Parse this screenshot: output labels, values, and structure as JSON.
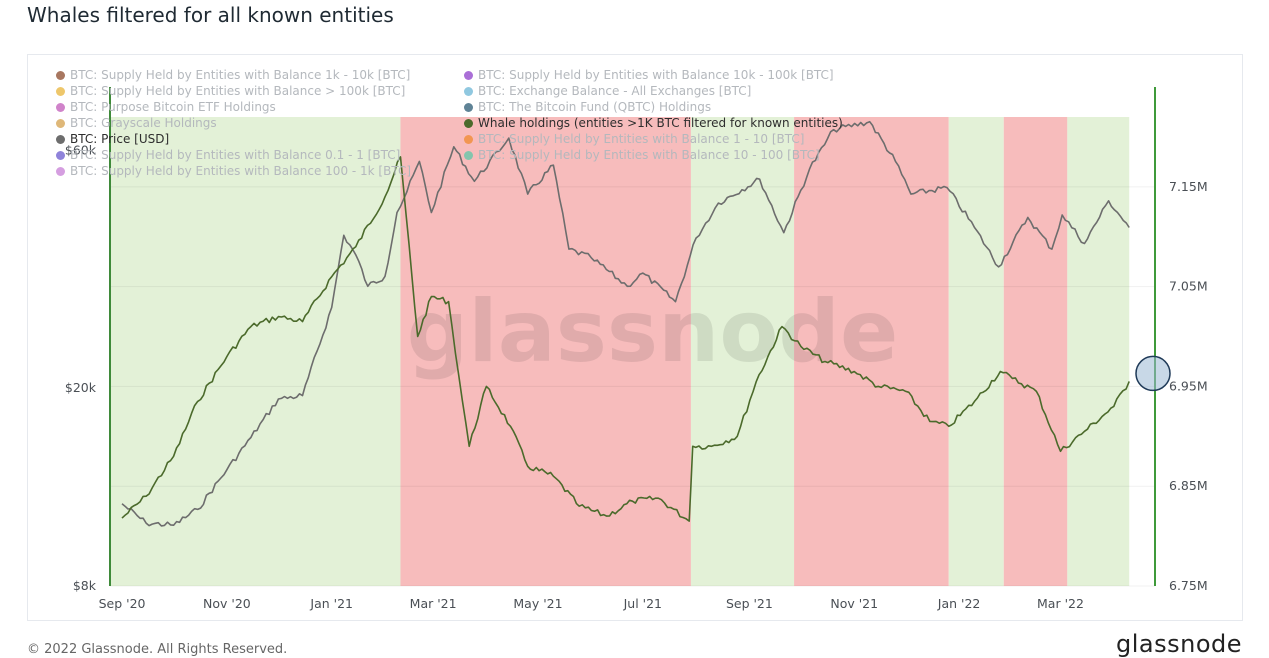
{
  "page": {
    "title": "Whales filtered for all known entities",
    "copyright": "© 2022 Glassnode. All Rights Reserved.",
    "brand": "glassnode",
    "watermark": "glassnode"
  },
  "legend": {
    "col1": [
      {
        "label": "BTC: Supply Held by Entities with Balance 1k - 10k [BTC]",
        "color": "#8b4a2b",
        "active": false
      },
      {
        "label": "BTC: Supply Held by Entities with Balance > 100k [BTC]",
        "color": "#e8b43a",
        "active": false
      },
      {
        "label": "BTC: Purpose Bitcoin ETF Holdings",
        "color": "#c05ab8",
        "active": false
      },
      {
        "label": "BTC: Grayscale Holdings",
        "color": "#d4a04c",
        "active": false
      },
      {
        "label": "BTC: Price [USD]",
        "color": "#6d6d6d",
        "active": true
      },
      {
        "label": "BTC: Supply Held by Entities with Balance 0.1 - 1 [BTC]",
        "color": "#6a5acd",
        "active": false
      },
      {
        "label": "BTC: Supply Held by Entities with Balance 100 - 1k [BTC]",
        "color": "#c77dd6",
        "active": false
      }
    ],
    "col2": [
      {
        "label": "BTC: Supply Held by Entities with Balance 10k - 100k [BTC]",
        "color": "#8e3fc9",
        "active": false
      },
      {
        "label": "BTC: Exchange Balance - All Exchanges [BTC]",
        "color": "#6bb6d6",
        "active": false
      },
      {
        "label": "BTC: The Bitcoin Fund (QBTC) Holdings",
        "color": "#2a5a73",
        "active": false
      },
      {
        "label": "Whale holdings (entities >1K BTC filtered for known entities)",
        "color": "#4b6a2b",
        "active": true
      },
      {
        "label": "BTC: Supply Held by Entities with Balance 1 - 10 [BTC]",
        "color": "#f0892e",
        "active": false
      },
      {
        "label": "BTC: Supply Held by Entities with Balance 10 - 100 [BTC]",
        "color": "#5cc8a8",
        "active": false
      }
    ]
  },
  "chart_data": {
    "type": "line",
    "x_ticks": [
      "Sep '20",
      "Nov '20",
      "Jan '21",
      "Mar '21",
      "May '21",
      "Jul '21",
      "Sep '21",
      "Nov '21",
      "Jan '22",
      "Mar '22"
    ],
    "x_range": [
      "2020-08-25",
      "2022-04-25"
    ],
    "y_left": {
      "scale": "log",
      "ticks": [
        "$8k",
        "$20k",
        "$60k"
      ],
      "tick_values": [
        8000,
        20000,
        60000
      ],
      "range": [
        8000,
        70000
      ]
    },
    "y_right": {
      "ticks": [
        "6.75M",
        "6.85M",
        "6.95M",
        "7.05M",
        "7.15M"
      ],
      "tick_values": [
        6750000,
        6850000,
        6950000,
        7050000,
        7150000
      ],
      "range": [
        6750000,
        7220000
      ]
    },
    "regimes": [
      {
        "start": "2020-08-25",
        "end": "2021-02-10",
        "signal": "accumulation",
        "color": "#e3f1d7"
      },
      {
        "start": "2021-02-10",
        "end": "2021-07-29",
        "signal": "distribution",
        "color": "#f7bcbc"
      },
      {
        "start": "2021-07-29",
        "end": "2021-09-27",
        "signal": "accumulation",
        "color": "#e3f1d7"
      },
      {
        "start": "2021-09-27",
        "end": "2021-12-26",
        "signal": "distribution",
        "color": "#f7bcbc"
      },
      {
        "start": "2021-12-26",
        "end": "2022-01-27",
        "signal": "accumulation",
        "color": "#e3f1d7"
      },
      {
        "start": "2022-01-27",
        "end": "2022-03-05",
        "signal": "distribution",
        "color": "#f7bcbc"
      },
      {
        "start": "2022-03-05",
        "end": "2022-04-10",
        "signal": "accumulation",
        "color": "#e3f1d7"
      }
    ],
    "series": [
      {
        "name": "BTC: Price [USD]",
        "axis": "left",
        "color": "#6d6d6d",
        "points": [
          [
            "2020-09-01",
            11700
          ],
          [
            "2020-09-15",
            10700
          ],
          [
            "2020-10-01",
            10600
          ],
          [
            "2020-10-15",
            11400
          ],
          [
            "2020-11-01",
            13700
          ],
          [
            "2020-11-15",
            15900
          ],
          [
            "2020-12-01",
            19000
          ],
          [
            "2020-12-15",
            19300
          ],
          [
            "2021-01-01",
            29000
          ],
          [
            "2021-01-08",
            40500
          ],
          [
            "2021-01-15",
            37000
          ],
          [
            "2021-01-22",
            32000
          ],
          [
            "2021-02-01",
            33500
          ],
          [
            "2021-02-08",
            45000
          ],
          [
            "2021-02-12",
            48000
          ],
          [
            "2021-02-21",
            57000
          ],
          [
            "2021-02-28",
            45000
          ],
          [
            "2021-03-13",
            61000
          ],
          [
            "2021-03-25",
            52000
          ],
          [
            "2021-04-14",
            63500
          ],
          [
            "2021-04-25",
            49000
          ],
          [
            "2021-05-10",
            56000
          ],
          [
            "2021-05-19",
            38000
          ],
          [
            "2021-06-01",
            36500
          ],
          [
            "2021-06-22",
            32000
          ],
          [
            "2021-07-01",
            34000
          ],
          [
            "2021-07-20",
            29800
          ],
          [
            "2021-08-01",
            40000
          ],
          [
            "2021-08-14",
            47000
          ],
          [
            "2021-09-07",
            52500
          ],
          [
            "2021-09-21",
            41000
          ],
          [
            "2021-10-06",
            55000
          ],
          [
            "2021-10-20",
            66000
          ],
          [
            "2021-11-10",
            68500
          ],
          [
            "2021-11-25",
            57000
          ],
          [
            "2021-12-04",
            49000
          ],
          [
            "2021-12-25",
            50500
          ],
          [
            "2022-01-10",
            42000
          ],
          [
            "2022-01-24",
            35000
          ],
          [
            "2022-02-10",
            44000
          ],
          [
            "2022-02-24",
            38000
          ],
          [
            "2022-03-02",
            44500
          ],
          [
            "2022-03-15",
            39000
          ],
          [
            "2022-03-29",
            47500
          ],
          [
            "2022-04-10",
            42000
          ]
        ]
      },
      {
        "name": "Whale holdings (entities >1K BTC filtered for known entities)",
        "axis": "right",
        "color": "#4b6a2b",
        "points": [
          [
            "2020-09-01",
            6818000
          ],
          [
            "2020-09-15",
            6840000
          ],
          [
            "2020-10-01",
            6880000
          ],
          [
            "2020-10-15",
            6935000
          ],
          [
            "2020-11-01",
            6980000
          ],
          [
            "2020-11-15",
            7010000
          ],
          [
            "2020-12-01",
            7020000
          ],
          [
            "2020-12-15",
            7015000
          ],
          [
            "2021-01-01",
            7060000
          ],
          [
            "2021-01-15",
            7090000
          ],
          [
            "2021-02-01",
            7140000
          ],
          [
            "2021-02-10",
            7180000
          ],
          [
            "2021-02-20",
            7000000
          ],
          [
            "2021-02-28",
            7040000
          ],
          [
            "2021-03-10",
            7035000
          ],
          [
            "2021-03-16",
            6960000
          ],
          [
            "2021-03-22",
            6890000
          ],
          [
            "2021-04-01",
            6950000
          ],
          [
            "2021-04-15",
            6910000
          ],
          [
            "2021-04-25",
            6870000
          ],
          [
            "2021-05-10",
            6860000
          ],
          [
            "2021-05-25",
            6830000
          ],
          [
            "2021-06-10",
            6820000
          ],
          [
            "2021-06-25",
            6835000
          ],
          [
            "2021-07-10",
            6838000
          ],
          [
            "2021-07-28",
            6815000
          ],
          [
            "2021-07-30",
            6890000
          ],
          [
            "2021-08-10",
            6890000
          ],
          [
            "2021-08-25",
            6900000
          ],
          [
            "2021-09-05",
            6955000
          ],
          [
            "2021-09-20",
            7010000
          ],
          [
            "2021-10-01",
            6990000
          ],
          [
            "2021-10-15",
            6975000
          ],
          [
            "2021-11-01",
            6965000
          ],
          [
            "2021-11-15",
            6950000
          ],
          [
            "2021-12-01",
            6945000
          ],
          [
            "2021-12-15",
            6915000
          ],
          [
            "2021-12-26",
            6910000
          ],
          [
            "2022-01-10",
            6935000
          ],
          [
            "2022-01-25",
            6965000
          ],
          [
            "2022-02-01",
            6958000
          ],
          [
            "2022-02-15",
            6945000
          ],
          [
            "2022-03-01",
            6885000
          ],
          [
            "2022-03-15",
            6905000
          ],
          [
            "2022-04-01",
            6930000
          ],
          [
            "2022-04-10",
            6955000
          ]
        ]
      }
    ],
    "highlight": {
      "date": "2022-04-10",
      "value": 6955000
    }
  }
}
